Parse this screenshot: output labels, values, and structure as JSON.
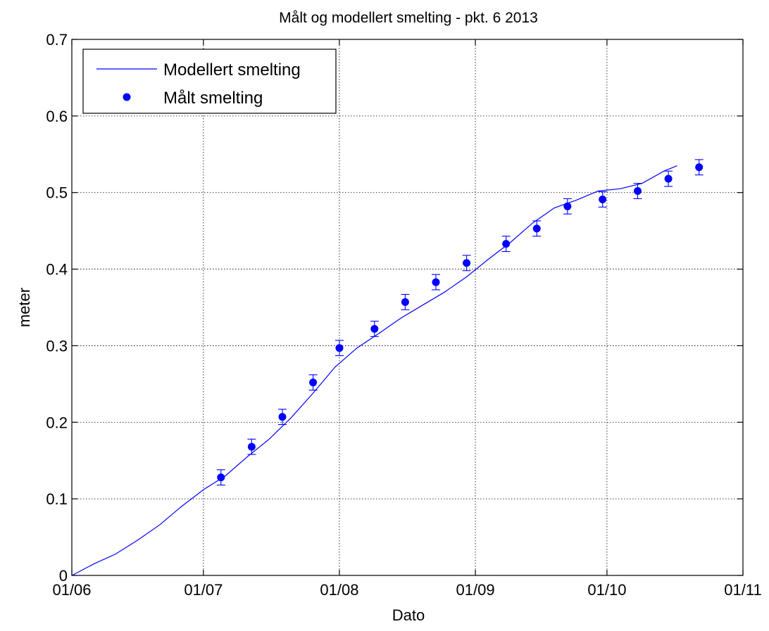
{
  "chart_data": {
    "type": "line",
    "title": "Målt og modellert smelting - pkt. 6 2013",
    "xlabel": "Dato",
    "ylabel": "meter",
    "xlim": [
      "2013-06-01",
      "2013-11-01"
    ],
    "ylim": [
      0,
      0.7
    ],
    "x_tick_labels": [
      "01/06",
      "01/07",
      "01/08",
      "01/09",
      "01/10",
      "01/11"
    ],
    "y_tick_labels": [
      "0",
      "0.1",
      "0.2",
      "0.3",
      "0.4",
      "0.5",
      "0.6",
      "0.7"
    ],
    "y_ticks": [
      0,
      0.1,
      0.2,
      0.3,
      0.4,
      0.5,
      0.6,
      0.7
    ],
    "grid": true,
    "legend_position": "top-left",
    "colors": {
      "series": "#0000ff",
      "axes": "#000000",
      "grid": "#000000",
      "background": "#ffffff"
    },
    "series": [
      {
        "name": "Modellert smelting",
        "type": "line",
        "x": [
          "2013-06-01",
          "2013-06-06",
          "2013-06-11",
          "2013-06-16",
          "2013-06-21",
          "2013-06-26",
          "2013-07-01",
          "2013-07-06",
          "2013-07-11",
          "2013-07-16",
          "2013-07-21",
          "2013-07-26",
          "2013-07-31",
          "2013-08-05",
          "2013-08-10",
          "2013-08-15",
          "2013-08-20",
          "2013-08-25",
          "2013-08-30",
          "2013-09-04",
          "2013-09-09",
          "2013-09-14",
          "2013-09-19",
          "2013-09-24",
          "2013-09-29",
          "2013-10-04",
          "2013-10-09",
          "2013-10-14",
          "2013-10-17"
        ],
        "y": [
          0.0,
          0.015,
          0.028,
          0.046,
          0.066,
          0.09,
          0.112,
          0.13,
          0.155,
          0.178,
          0.206,
          0.238,
          0.272,
          0.297,
          0.316,
          0.336,
          0.353,
          0.37,
          0.39,
          0.413,
          0.435,
          0.46,
          0.48,
          0.49,
          0.502,
          0.505,
          0.512,
          0.528,
          0.535
        ]
      },
      {
        "name": "Målt smelting",
        "type": "scatter",
        "marker": "filled-circle",
        "error_bar": 0.01,
        "x": [
          "2013-07-05",
          "2013-07-12",
          "2013-07-19",
          "2013-07-26",
          "2013-08-01",
          "2013-08-09",
          "2013-08-16",
          "2013-08-23",
          "2013-08-30",
          "2013-09-08",
          "2013-09-15",
          "2013-09-22",
          "2013-09-30",
          "2013-10-08",
          "2013-10-15",
          "2013-10-22"
        ],
        "y": [
          0.128,
          0.168,
          0.207,
          0.252,
          0.297,
          0.322,
          0.357,
          0.383,
          0.408,
          0.433,
          0.453,
          0.482,
          0.491,
          0.502,
          0.518,
          0.533
        ]
      }
    ]
  }
}
